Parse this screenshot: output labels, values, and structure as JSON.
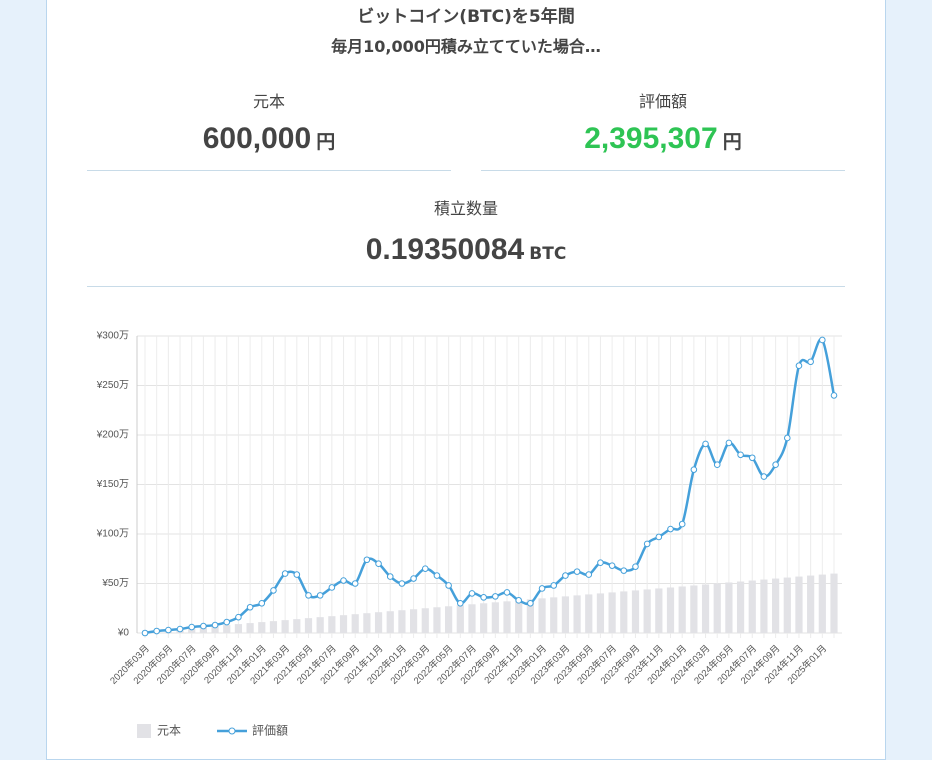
{
  "header": {
    "title_line1": "ビットコイン(BTC)を5年間",
    "title_line2": "毎月10,000円積み立てていた場合…"
  },
  "summary": {
    "principal": {
      "label": "元本",
      "value": "600,000",
      "unit": "円"
    },
    "valuation": {
      "label": "評価額",
      "value": "2,395,307",
      "unit": "円"
    },
    "quantity": {
      "label": "積立数量",
      "value": "0.19350084",
      "unit": "BTC"
    }
  },
  "chart_data": {
    "type": "line",
    "categories": [
      "2020年03月",
      null,
      "2020年05月",
      null,
      "2020年07月",
      null,
      "2020年09月",
      null,
      "2020年11月",
      null,
      "2021年01月",
      null,
      "2021年03月",
      null,
      "2021年05月",
      null,
      "2021年07月",
      null,
      "2021年09月",
      null,
      "2021年11月",
      null,
      "2022年01月",
      null,
      "2022年03月",
      null,
      "2022年05月",
      null,
      "2022年07月",
      null,
      "2022年09月",
      null,
      "2022年11月",
      null,
      "2023年01月",
      null,
      "2023年03月",
      null,
      "2023年05月",
      null,
      "2023年07月",
      null,
      "2023年09月",
      null,
      "2023年11月",
      null,
      "2024年01月",
      null,
      "2024年03月",
      null,
      "2024年05月",
      null,
      "2024年07月",
      null,
      "2024年09月",
      null,
      "2024年11月",
      null,
      "2025年01月",
      null
    ],
    "series": [
      {
        "name": "元本",
        "type": "bar",
        "color": "#e2e2e6",
        "values": [
          1,
          2,
          3,
          4,
          5,
          6,
          7,
          8,
          9,
          10,
          11,
          12,
          13,
          14,
          15,
          16,
          17,
          18,
          19,
          20,
          21,
          22,
          23,
          24,
          25,
          26,
          27,
          28,
          29,
          30,
          31,
          32,
          33,
          34,
          35,
          36,
          37,
          38,
          39,
          40,
          41,
          42,
          43,
          44,
          45,
          46,
          47,
          48,
          49,
          50,
          51,
          52,
          53,
          54,
          55,
          56,
          57,
          58,
          59,
          60
        ]
      },
      {
        "name": "評価額",
        "type": "line",
        "color": "#45a0da",
        "values": [
          0,
          2,
          3,
          4,
          6,
          7,
          8,
          11,
          16,
          26,
          30,
          43,
          60,
          59,
          38,
          38,
          46,
          53,
          50,
          74,
          70,
          57,
          50,
          55,
          65,
          58,
          48,
          30,
          40,
          36,
          37,
          41,
          33,
          30,
          45,
          48,
          58,
          62,
          59,
          71,
          68,
          63,
          67,
          90,
          97,
          105,
          110,
          165,
          191,
          170,
          192,
          180,
          177,
          158,
          170,
          197,
          270,
          274,
          296,
          240
        ]
      }
    ],
    "ylim": [
      0,
      300
    ],
    "yticks": [
      {
        "value": 0,
        "label": "¥0"
      },
      {
        "value": 50,
        "label": "¥50万"
      },
      {
        "value": 100,
        "label": "¥100万"
      },
      {
        "value": 150,
        "label": "¥150万"
      },
      {
        "value": 200,
        "label": "¥200万"
      },
      {
        "value": 250,
        "label": "¥250万"
      },
      {
        "value": 300,
        "label": "¥300万"
      }
    ],
    "grid": true
  }
}
